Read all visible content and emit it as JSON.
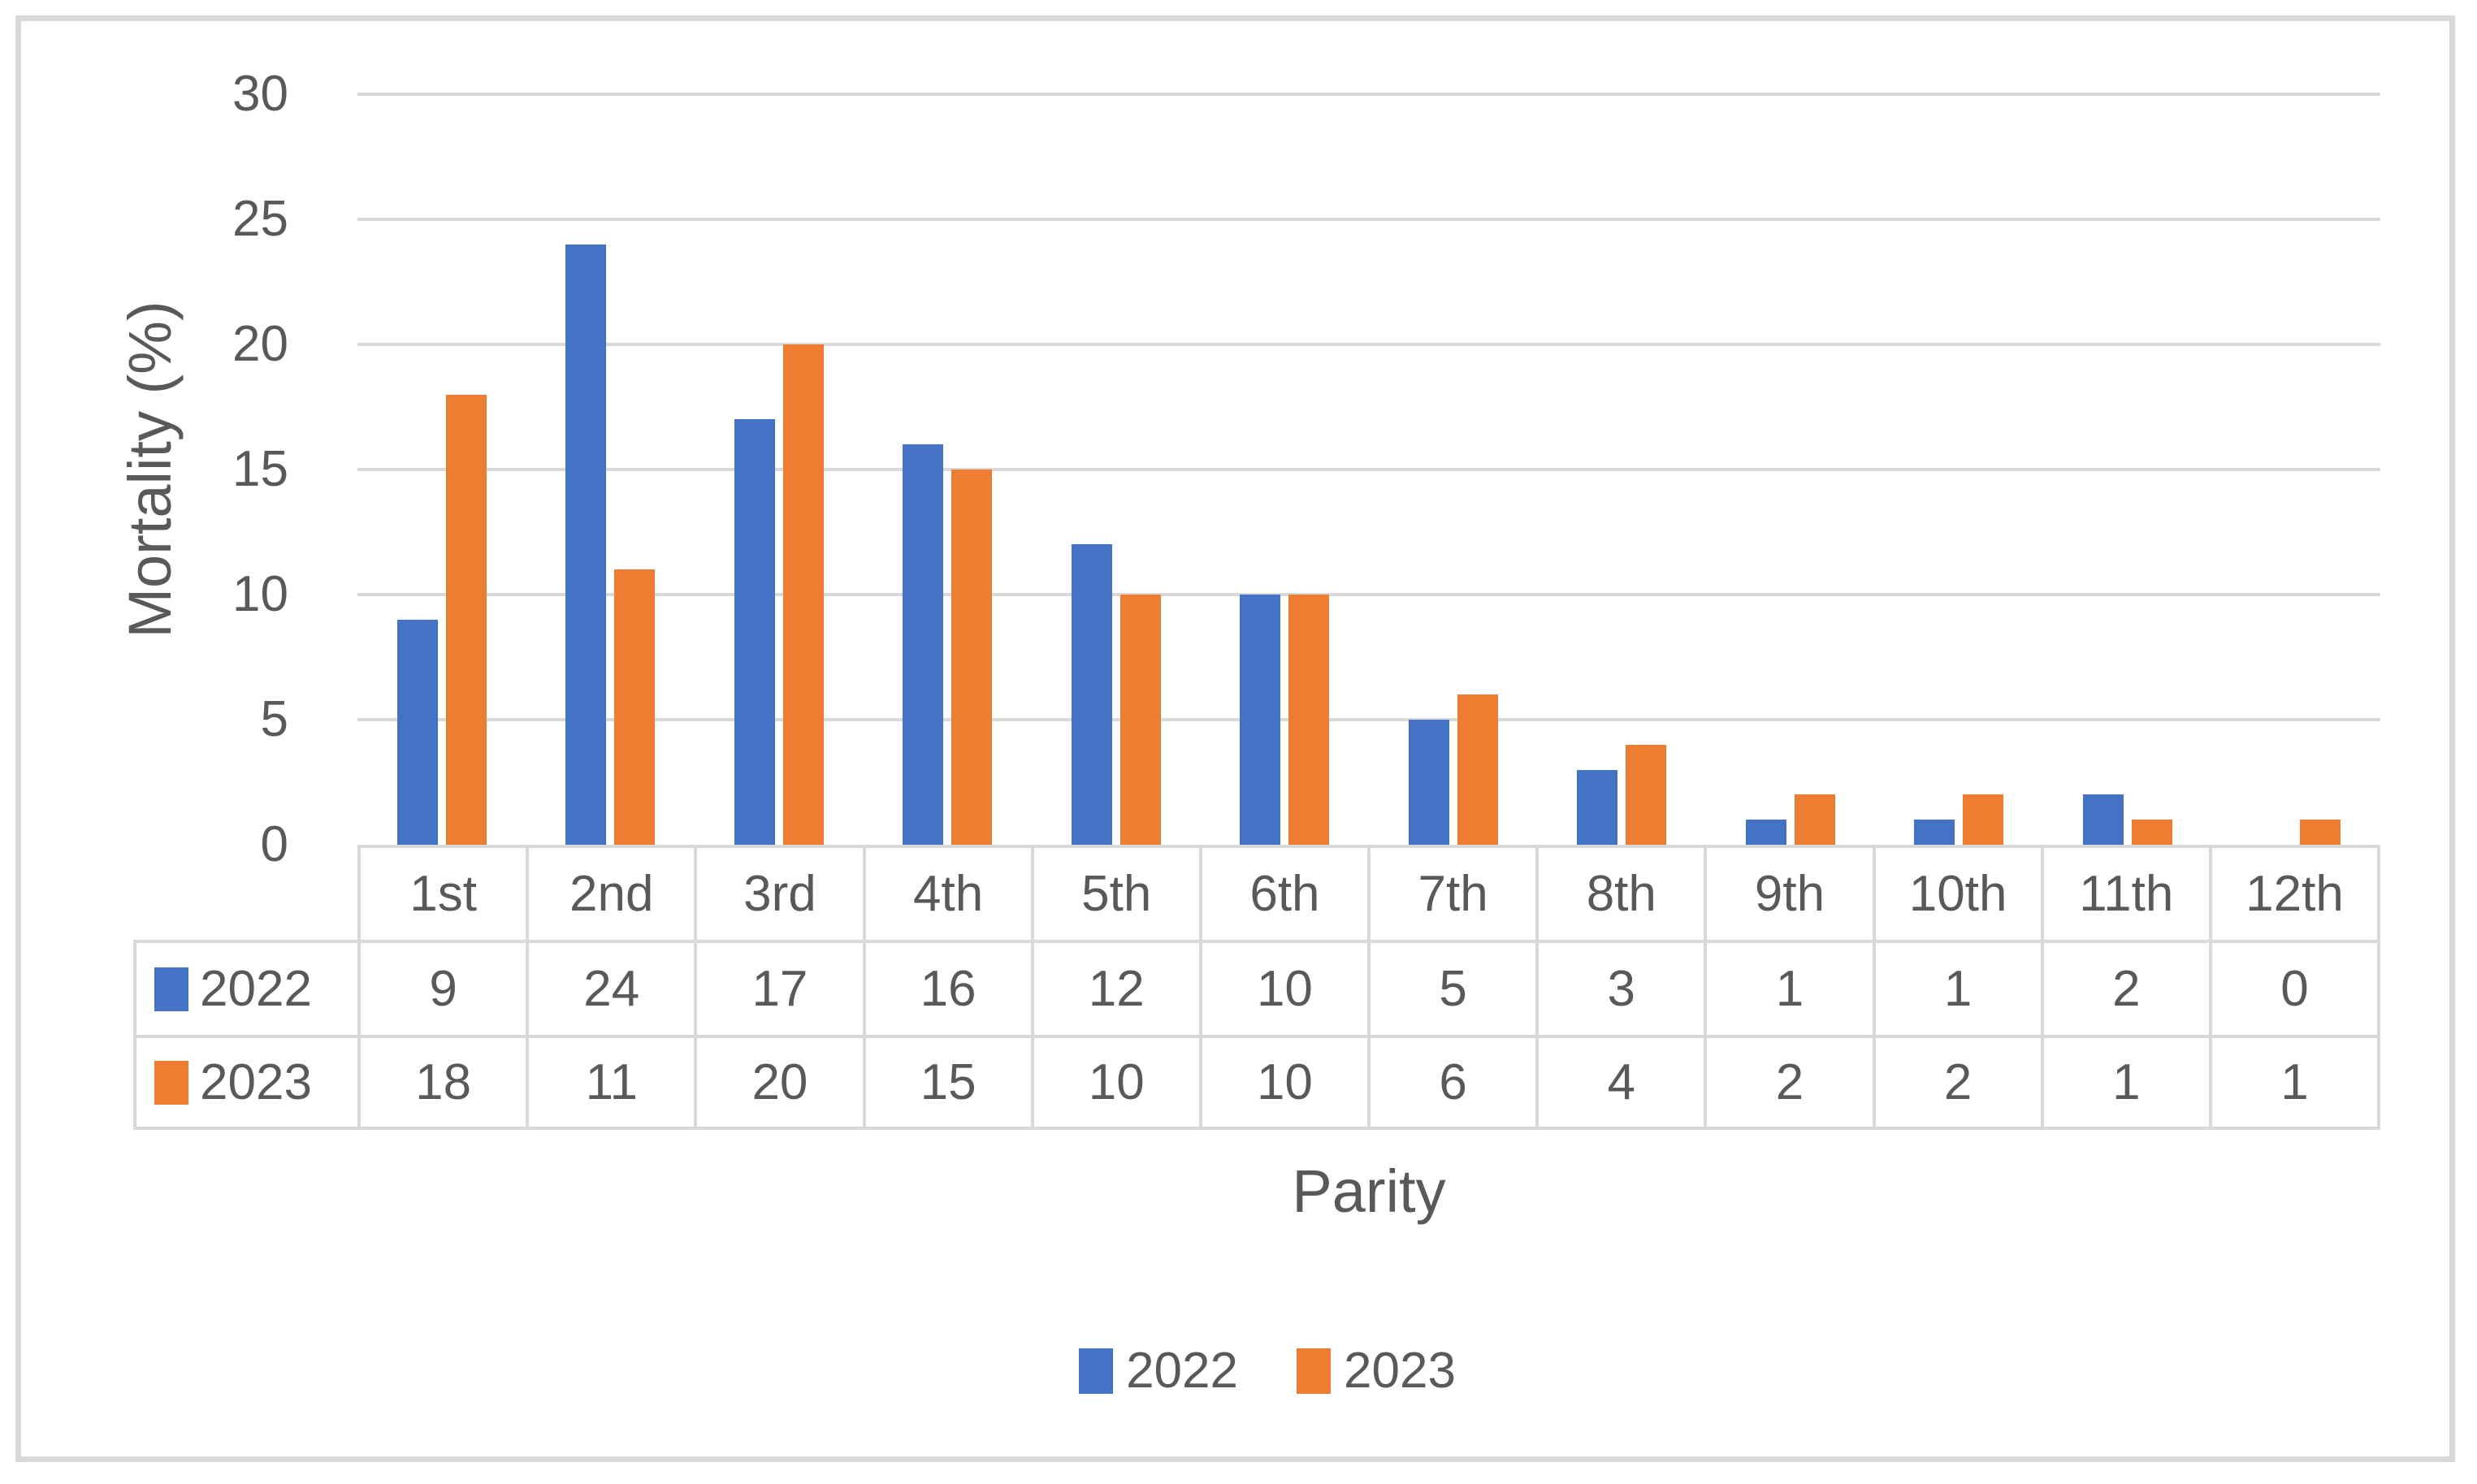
{
  "chart_data": {
    "type": "bar",
    "categories": [
      "1st",
      "2nd",
      "3rd",
      "4th",
      "5th",
      "6th",
      "7th",
      "8th",
      "9th",
      "10th",
      "11th",
      "12th"
    ],
    "series": [
      {
        "name": "2022",
        "color": "#4472C4",
        "values": [
          9,
          24,
          17,
          16,
          12,
          10,
          5,
          3,
          1,
          1,
          2,
          0
        ]
      },
      {
        "name": "2023",
        "color": "#ED7D31",
        "values": [
          18,
          11,
          20,
          15,
          10,
          10,
          6,
          4,
          2,
          2,
          1,
          1
        ]
      }
    ],
    "title": "",
    "xlabel": "Parity",
    "ylabel": "Mortality (%)",
    "ylim": [
      0,
      30
    ],
    "yticks": [
      0,
      5,
      10,
      15,
      20,
      25,
      30
    ],
    "grid": true,
    "legend_position": "bottom",
    "legend_labels": [
      "2022",
      "2023"
    ],
    "data_table_shown": true
  },
  "colors": {
    "series_2022": "#4472C4",
    "series_2023": "#ED7D31",
    "gridline": "#D9D9D9",
    "table_border": "#D9D9D9",
    "frame_border": "#D9D9D9",
    "text": "#595959",
    "background": "#FFFFFF"
  }
}
